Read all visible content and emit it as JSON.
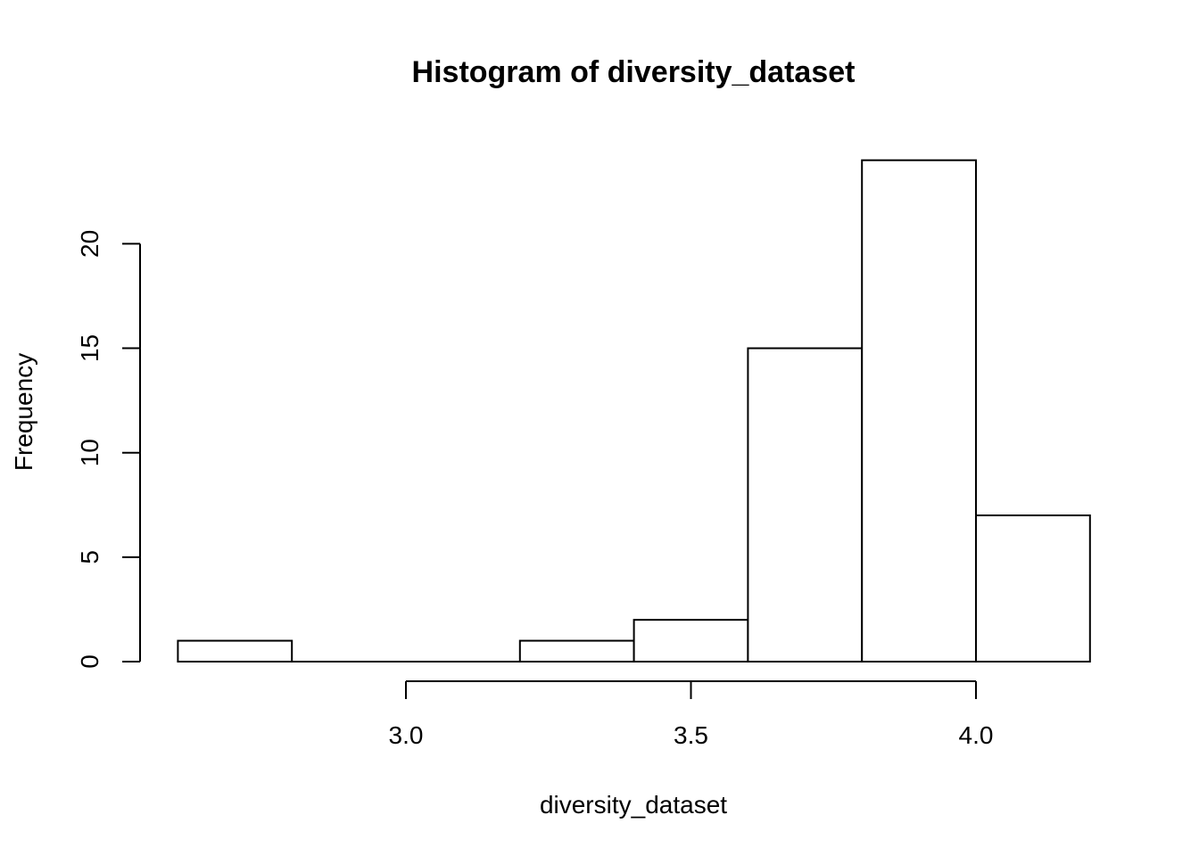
{
  "chart_data": {
    "type": "bar",
    "title": "Histogram of diversity_dataset",
    "xlabel": "diversity_dataset",
    "ylabel": "Frequency",
    "bins": [
      {
        "from": 2.6,
        "to": 2.8,
        "count": 1
      },
      {
        "from": 2.8,
        "to": 3.0,
        "count": 0
      },
      {
        "from": 3.0,
        "to": 3.2,
        "count": 0
      },
      {
        "from": 3.2,
        "to": 3.4,
        "count": 1
      },
      {
        "from": 3.4,
        "to": 3.6,
        "count": 2
      },
      {
        "from": 3.6,
        "to": 3.8,
        "count": 15
      },
      {
        "from": 3.8,
        "to": 4.0,
        "count": 24
      },
      {
        "from": 4.0,
        "to": 4.2,
        "count": 7
      }
    ],
    "x_ticks": [
      {
        "value": 3.0,
        "label": "3.0"
      },
      {
        "value": 3.5,
        "label": "3.5"
      },
      {
        "value": 4.0,
        "label": "4.0"
      }
    ],
    "y_ticks": [
      {
        "value": 0,
        "label": "0"
      },
      {
        "value": 5,
        "label": "5"
      },
      {
        "value": 10,
        "label": "10"
      },
      {
        "value": 15,
        "label": "15"
      },
      {
        "value": 20,
        "label": "20"
      }
    ],
    "grid": false,
    "legend": "none"
  }
}
